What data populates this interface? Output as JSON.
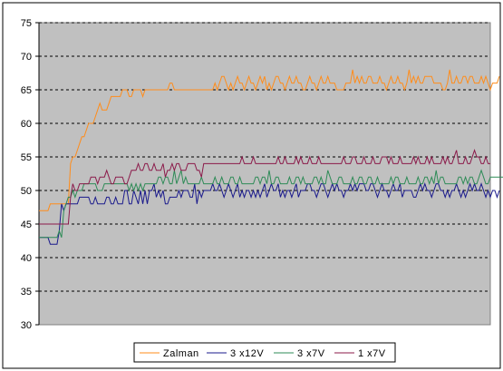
{
  "chart_data": {
    "type": "line",
    "title": "",
    "xlabel": "",
    "ylabel": "",
    "ylim": [
      30,
      75
    ],
    "yticks": [
      "30",
      "35",
      "40",
      "45",
      "50",
      "55",
      "60",
      "65",
      "70",
      "75"
    ],
    "grid": "horizontal dashed",
    "legend_position": "bottom",
    "plot_background": "#c0c0c0",
    "x_count": 201,
    "series": [
      {
        "name": "Zalman",
        "color": "#ff8c1a",
        "values": [
          47,
          47,
          47,
          47,
          47,
          48,
          48,
          48,
          48,
          48,
          48,
          48,
          48,
          48,
          54,
          55,
          55,
          56,
          57,
          58,
          58,
          59,
          60,
          60,
          60,
          61,
          62,
          63,
          62,
          62,
          62,
          63,
          64,
          64,
          64,
          64,
          64,
          65,
          65,
          65,
          64,
          64,
          65,
          65,
          65,
          65,
          64,
          65,
          65,
          65,
          65,
          65,
          65,
          65,
          65,
          65,
          65,
          65,
          66,
          66,
          65,
          65,
          65,
          65,
          65,
          65,
          65,
          65,
          65,
          65,
          65,
          65,
          65,
          65,
          65,
          65,
          65,
          65,
          66,
          65,
          66,
          67,
          67,
          66,
          65,
          66,
          65,
          66,
          67,
          66,
          66,
          65,
          66,
          67,
          66,
          66,
          65,
          66,
          67,
          66,
          67,
          65,
          66,
          65,
          66,
          67,
          67,
          66,
          66,
          65,
          66,
          67,
          66,
          66,
          67,
          66,
          66,
          65,
          65,
          66,
          67,
          66,
          66,
          65,
          66,
          67,
          66,
          66,
          67,
          66,
          66,
          66,
          65,
          65,
          65,
          65,
          66,
          66,
          66,
          68,
          66,
          67,
          66,
          67,
          66,
          66,
          67,
          67,
          66,
          66,
          66,
          67,
          66,
          66,
          65,
          66,
          67,
          66,
          66,
          67,
          66,
          66,
          65,
          66,
          68,
          66,
          67,
          66,
          67,
          66,
          66,
          67,
          67,
          67,
          67,
          66,
          66,
          66,
          66,
          65,
          65,
          66,
          68,
          66,
          66,
          67,
          66,
          66,
          67,
          67,
          66,
          67,
          67,
          66,
          66,
          66,
          67,
          66,
          67,
          66,
          65,
          66,
          66,
          66,
          67
        ]
      },
      {
        "name": "3 x12V",
        "color": "#1a1a8c",
        "values": [
          43,
          43,
          43,
          43,
          43,
          42,
          42,
          42,
          42,
          44,
          48,
          47,
          48,
          48,
          48,
          48,
          48,
          48,
          49,
          49,
          49,
          49,
          49,
          48,
          48,
          49,
          48,
          48,
          48,
          48,
          49,
          49,
          48,
          48,
          49,
          48,
          48,
          48,
          50,
          50,
          48,
          48,
          50,
          49,
          48,
          50,
          48,
          50,
          48,
          50,
          50,
          51,
          49,
          50,
          49,
          50,
          48,
          48,
          49,
          49,
          49,
          49,
          50,
          49,
          50,
          50,
          50,
          49,
          49,
          51,
          48,
          50,
          49,
          50,
          50,
          50,
          50,
          51,
          50,
          50,
          51,
          50,
          49,
          50,
          51,
          50,
          49,
          50,
          51,
          49,
          50,
          49,
          50,
          50,
          49,
          50,
          49,
          50,
          49,
          50,
          51,
          49,
          50,
          51,
          50,
          50,
          51,
          49,
          50,
          49,
          50,
          50,
          49,
          50,
          51,
          49,
          50,
          50,
          50,
          51,
          51,
          50,
          50,
          49,
          50,
          51,
          51,
          50,
          49,
          50,
          51,
          50,
          51,
          50,
          50,
          49,
          50,
          50,
          51,
          50,
          51,
          50,
          51,
          51,
          51,
          50,
          50,
          51,
          51,
          50,
          49,
          50,
          51,
          50,
          50,
          49,
          50,
          51,
          50,
          50,
          51,
          49,
          50,
          50,
          50,
          50,
          49,
          49,
          50,
          51,
          50,
          51,
          50,
          50,
          49,
          50,
          51,
          51,
          50,
          50,
          49,
          50,
          49,
          50,
          50,
          51,
          50,
          49,
          50,
          49,
          50,
          51,
          50,
          51,
          50,
          50,
          51,
          50,
          49,
          50,
          49,
          50,
          50,
          49,
          50
        ]
      },
      {
        "name": "3 x7V",
        "color": "#2e8b57",
        "values": [
          43,
          43,
          43,
          43,
          43,
          43,
          43,
          43,
          43,
          44,
          43,
          47,
          48,
          49,
          49,
          50,
          49,
          50,
          50,
          50,
          51,
          51,
          51,
          51,
          51,
          51,
          50,
          50,
          50,
          51,
          51,
          51,
          51,
          51,
          51,
          51,
          51,
          51,
          51,
          51,
          50,
          51,
          50,
          51,
          50,
          51,
          50,
          51,
          51,
          51,
          51,
          51,
          51,
          52,
          52,
          51,
          52,
          52,
          51,
          51,
          53,
          51,
          52,
          53,
          51,
          52,
          51,
          51,
          51,
          51,
          51,
          51,
          52,
          51,
          51,
          51,
          51,
          51,
          52,
          51,
          51,
          52,
          51,
          51,
          51,
          52,
          52,
          51,
          51,
          52,
          51,
          51,
          51,
          51,
          51,
          51,
          52,
          52,
          51,
          52,
          52,
          51,
          53,
          51,
          51,
          52,
          52,
          51,
          51,
          51,
          51,
          52,
          51,
          51,
          52,
          52,
          51,
          52,
          51,
          51,
          51,
          51,
          52,
          52,
          51,
          52,
          51,
          51,
          53,
          52,
          51,
          51,
          51,
          52,
          52,
          51,
          51,
          51,
          51,
          52,
          51,
          51,
          52,
          52,
          51,
          51,
          52,
          52,
          51,
          51,
          52,
          51,
          51,
          51,
          51,
          51,
          52,
          51,
          52,
          52,
          51,
          51,
          51,
          52,
          51,
          51,
          51,
          51,
          52,
          51,
          51,
          52,
          52,
          51,
          52,
          51,
          53,
          51,
          52,
          52,
          51,
          51,
          51,
          51,
          51,
          51,
          52,
          52,
          51,
          52,
          51,
          52,
          52,
          51,
          51,
          52,
          53,
          52,
          51,
          51,
          52,
          52,
          52,
          52,
          52,
          52,
          52,
          51,
          51
        ]
      },
      {
        "name": "1 x7V",
        "color": "#8b1a4a",
        "values": [
          45,
          45,
          45,
          45,
          45,
          45,
          45,
          45,
          45,
          45,
          45,
          45,
          45,
          45,
          49,
          51,
          50,
          50,
          51,
          51,
          51,
          51,
          51,
          52,
          52,
          52,
          51,
          52,
          52,
          52,
          53,
          52,
          51,
          51,
          52,
          52,
          52,
          52,
          51,
          51,
          52,
          53,
          53,
          53,
          54,
          53,
          53,
          54,
          54,
          53,
          53,
          54,
          53,
          53,
          53,
          54,
          52,
          53,
          53,
          54,
          53,
          54,
          54,
          53,
          53,
          53,
          54,
          54,
          54,
          54,
          53,
          53,
          52,
          54,
          54,
          54,
          54,
          54,
          54,
          54,
          54,
          54,
          54,
          54,
          54,
          54,
          54,
          54,
          54,
          54,
          55,
          54,
          54,
          54,
          54,
          55,
          54,
          54,
          54,
          54,
          54,
          54,
          54,
          54,
          54,
          54,
          55,
          54,
          54,
          55,
          54,
          54,
          54,
          54,
          55,
          54,
          55,
          54,
          54,
          54,
          55,
          54,
          54,
          54,
          55,
          54,
          54,
          54,
          54,
          54,
          54,
          54,
          54,
          54,
          54,
          55,
          54,
          54,
          54,
          55,
          55,
          54,
          54,
          54,
          55,
          54,
          54,
          54,
          55,
          54,
          54,
          54,
          55,
          55,
          55,
          54,
          55,
          54,
          54,
          54,
          55,
          54,
          54,
          54,
          54,
          54,
          55,
          54,
          55,
          54,
          54,
          54,
          55,
          54,
          55,
          54,
          54,
          54,
          54,
          55,
          54,
          55,
          54,
          54,
          55,
          56,
          54,
          54,
          54,
          55,
          54,
          54,
          55,
          56,
          55,
          55,
          54,
          54,
          55,
          54,
          54
        ]
      }
    ]
  }
}
